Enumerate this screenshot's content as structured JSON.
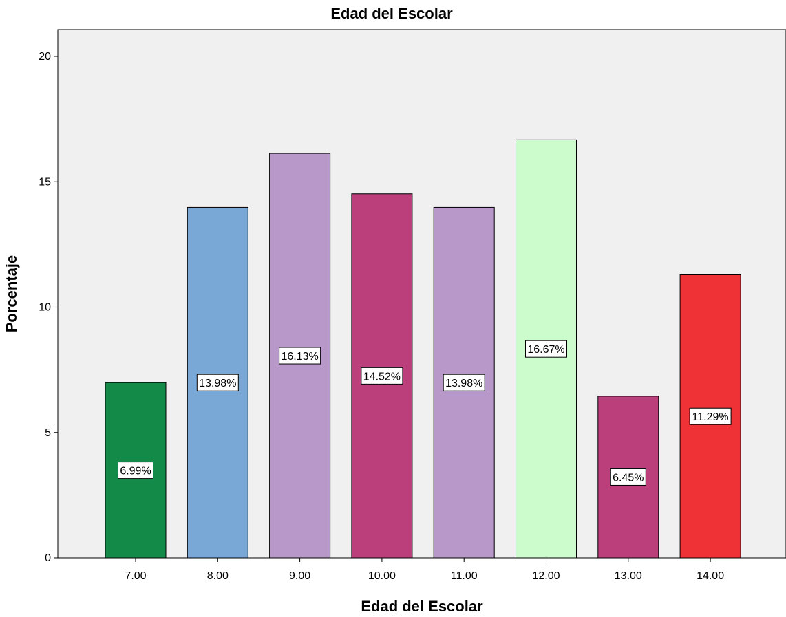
{
  "chart_data": {
    "type": "bar",
    "title": "Edad del Escolar",
    "xlabel": "Edad del Escolar",
    "ylabel": "Porcentaje",
    "categories": [
      "7.00",
      "8.00",
      "9.00",
      "10.00",
      "11.00",
      "12.00",
      "13.00",
      "14.00"
    ],
    "values": [
      6.99,
      13.98,
      16.13,
      14.52,
      13.98,
      16.67,
      6.45,
      11.29
    ],
    "data_labels": [
      "6.99%",
      "13.98%",
      "16.13%",
      "14.52%",
      "13.98%",
      "16.67%",
      "6.45%",
      "11.29%"
    ],
    "colors": [
      "#138a47",
      "#79a8d6",
      "#b898c8",
      "#bb3f7b",
      "#b898c8",
      "#ccfccc",
      "#bb3f7b",
      "#ef3236"
    ],
    "yticks": [
      "0",
      "5",
      "10",
      "15",
      "20"
    ],
    "ylim": [
      0,
      21
    ],
    "grid": false,
    "legend": "none",
    "plot_background": "#f0f0f0"
  }
}
